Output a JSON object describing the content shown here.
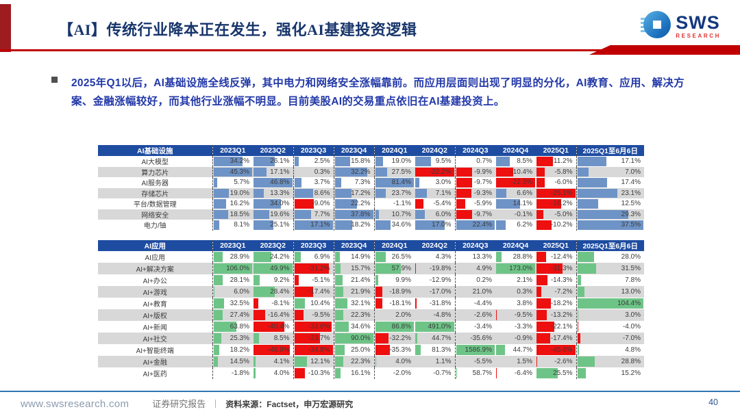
{
  "title": {
    "text": "【AI】传统行业降本正在发生，强化AI基建投资逻辑"
  },
  "logo": {
    "name": "SWS",
    "sub": "RESEARCH"
  },
  "bullet": {
    "text": "2025年Q1以后，AI基础设施全线反弹，其中电力和网络安全涨幅靠前。而应用层面则出现了明显的分化，AI教育、应用、解决方案、金融涨幅较好，而其他行业涨幅不明显。目前美股AI的交易重点依旧在AI基建投资上。"
  },
  "colors": {
    "accent_red": "#c00000",
    "header_blue": "#1e4ca1",
    "bar_blue": "#6e93c6",
    "bar_green": "#6ec487",
    "bar_red": "#ee0f0f",
    "row_alt_gray": "#d8d8d8",
    "title_navy": "#17356b",
    "body_blue": "#2238a8"
  },
  "tables": [
    {
      "name": "AI基础设施",
      "bar_positive": "#6e93c6",
      "bar_negative": "#ee0f0f",
      "columns": [
        "2023Q1",
        "2023Q2",
        "2023Q3",
        "2023Q4",
        "2024Q1",
        "2024Q2",
        "2024Q3",
        "2024Q4",
        "2025Q1",
        "2025Q1至6月6日"
      ],
      "rows": [
        {
          "label": "AI大模型",
          "values": [
            34.2,
            26.1,
            2.5,
            15.8,
            19.0,
            9.5,
            0.7,
            8.5,
            -11.2,
            17.1
          ]
        },
        {
          "label": "算力芯片",
          "values": [
            45.3,
            17.1,
            0.3,
            32.2,
            27.5,
            -22.2,
            -9.9,
            -10.4,
            -5.8,
            7.0
          ]
        },
        {
          "label": "AI服务器",
          "values": [
            5.7,
            46.8,
            3.7,
            7.3,
            81.4,
            3.0,
            -9.7,
            -22.3,
            -6.0,
            17.4
          ]
        },
        {
          "label": "存储芯片",
          "values": [
            19.0,
            13.3,
            8.6,
            17.2,
            23.7,
            7.1,
            -9.3,
            6.6,
            -25.1,
            23.1
          ]
        },
        {
          "label": "平台/数据管理",
          "values": [
            16.2,
            34.0,
            -9.0,
            22.2,
            -1.1,
            -5.4,
            -5.9,
            14.1,
            -16.2,
            12.5
          ]
        },
        {
          "label": "网络安全",
          "values": [
            18.5,
            19.6,
            7.7,
            37.8,
            10.7,
            6.0,
            -9.7,
            -0.1,
            -5.0,
            29.3
          ]
        },
        {
          "label": "电力/铀",
          "values": [
            8.1,
            25.1,
            17.1,
            18.2,
            34.6,
            17.0,
            22.4,
            6.2,
            -10.2,
            37.5
          ]
        }
      ]
    },
    {
      "name": "AI应用",
      "bar_positive": "#6ec487",
      "bar_negative": "#ee0f0f",
      "columns": [
        "2023Q1",
        "2023Q2",
        "2023Q3",
        "2023Q4",
        "2024Q1",
        "2024Q2",
        "2024Q3",
        "2024Q4",
        "2025Q1",
        "2025Q1至6月6日"
      ],
      "rows": [
        {
          "label": "AI应用",
          "values": [
            28.9,
            24.2,
            6.9,
            14.9,
            26.5,
            4.3,
            13.3,
            28.8,
            -12.4,
            28.0
          ]
        },
        {
          "label": "AI+解决方案",
          "values": [
            106.0,
            49.9,
            -31.2,
            15.7,
            57.9,
            -19.8,
            4.9,
            173.0,
            -31.3,
            31.5
          ]
        },
        {
          "label": "AI+办公",
          "values": [
            28.1,
            9.2,
            -5.1,
            21.4,
            9.9,
            -12.9,
            0.2,
            2.1,
            -14.3,
            7.8
          ]
        },
        {
          "label": "AI+游戏",
          "values": [
            6.0,
            28.4,
            -17.4,
            21.9,
            -18.9,
            -17.0,
            21.0,
            0.3,
            -7.2,
            13.0
          ]
        },
        {
          "label": "AI+教育",
          "values": [
            32.5,
            -8.1,
            10.4,
            32.1,
            -18.1,
            -31.8,
            -4.4,
            3.8,
            -18.2,
            104.4
          ]
        },
        {
          "label": "AI+版权",
          "values": [
            27.4,
            -16.4,
            -9.5,
            22.3,
            2.0,
            -4.8,
            -2.6,
            -9.5,
            -13.2,
            3.0
          ]
        },
        {
          "label": "AI+新闻",
          "values": [
            63.8,
            -40.4,
            -33.6,
            34.6,
            86.8,
            491.0,
            -3.4,
            -3.3,
            -22.1,
            -4.0
          ]
        },
        {
          "label": "AI+社交",
          "values": [
            25.3,
            8.5,
            -23.7,
            90.0,
            -32.2,
            44.7,
            -35.6,
            -0.9,
            -17.4,
            -7.0
          ]
        },
        {
          "label": "AI+智能终端",
          "values": [
            18.2,
            -46.9,
            -34.8,
            25.0,
            -35.3,
            81.3,
            1586.9,
            44.7,
            -45.6,
            4.8
          ]
        },
        {
          "label": "AI+金融",
          "values": [
            14.5,
            4.1,
            12.1,
            22.3,
            4.0,
            1.1,
            -5.5,
            1.5,
            -2.6,
            28.8
          ]
        },
        {
          "label": "AI+医药",
          "values": [
            -1.8,
            4.0,
            -10.3,
            16.1,
            -2.0,
            -0.7,
            58.7,
            -6.4,
            25.5,
            15.2
          ]
        }
      ]
    }
  ],
  "footer": {
    "site": "www.swsresearch.com",
    "report_type": "证券研究报告",
    "source": "资料来源：Factset，申万宏源研究",
    "page": "40"
  }
}
